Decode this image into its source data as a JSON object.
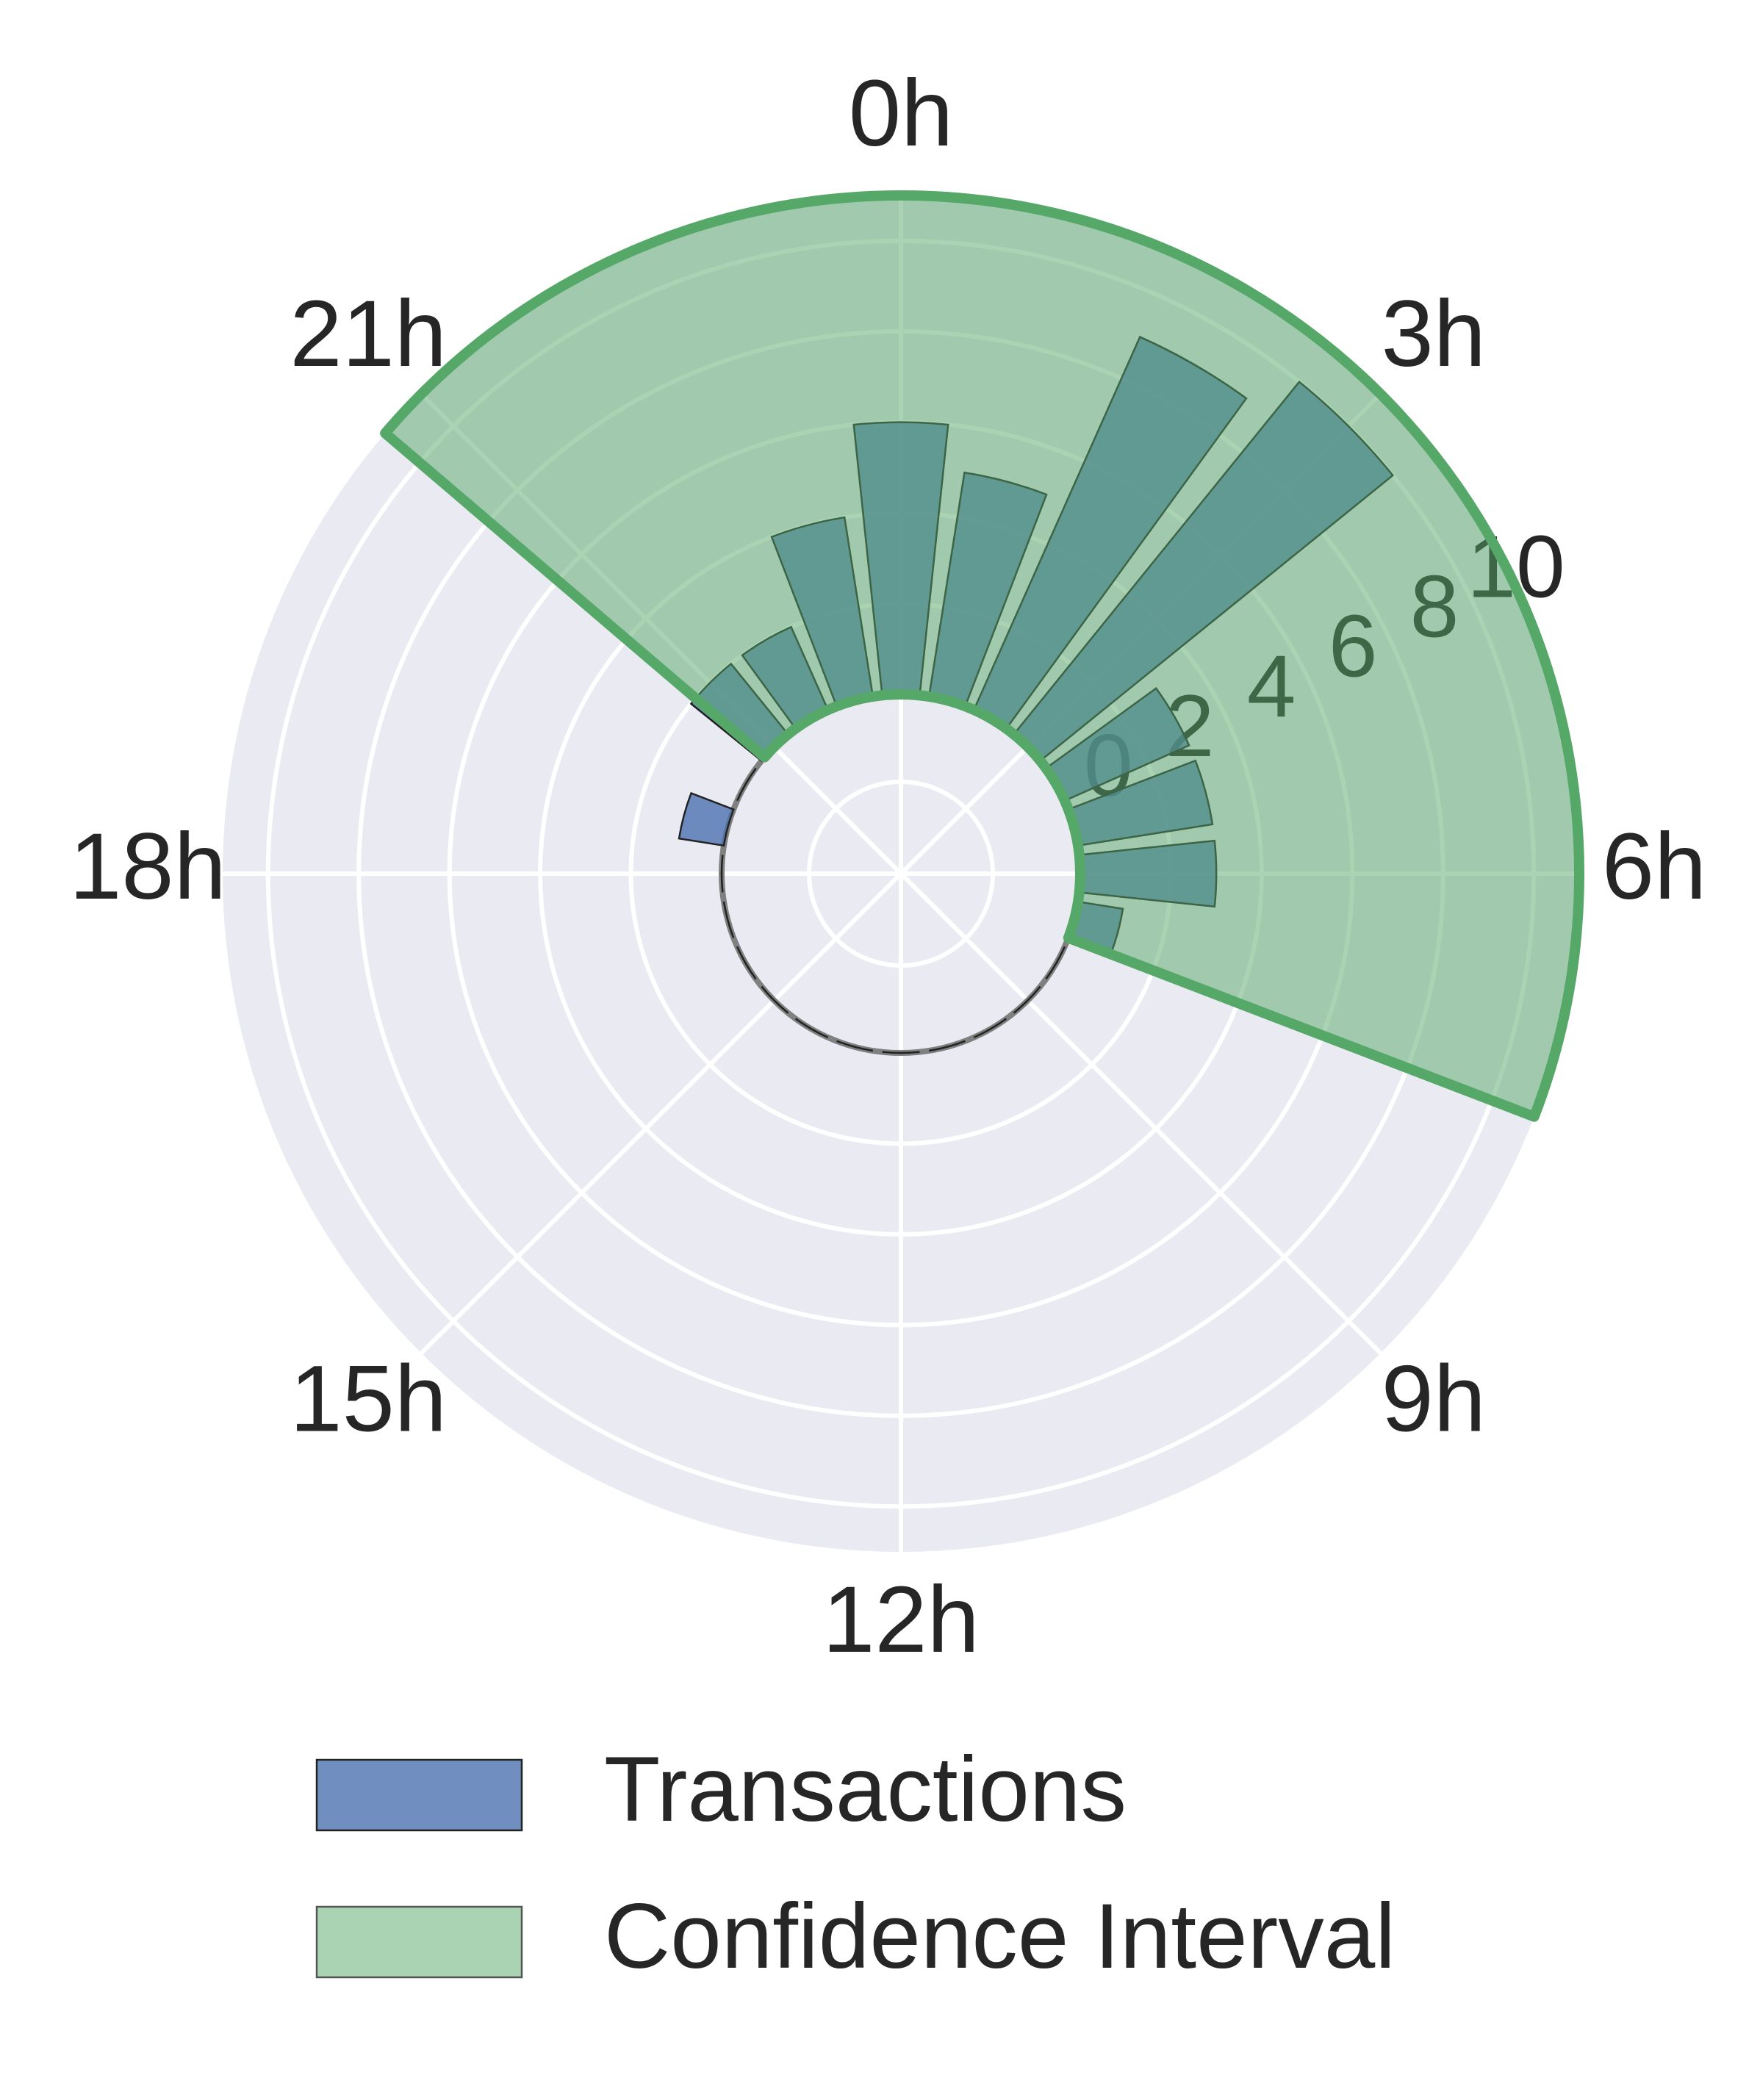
{
  "chart_data": {
    "type": "polar-bar",
    "x": [
      0,
      1,
      2,
      3,
      4,
      5,
      6,
      7,
      8,
      9,
      10,
      11,
      12,
      13,
      14,
      15,
      16,
      17,
      18,
      19,
      20,
      21,
      22,
      23
    ],
    "xlim": [
      0,
      24
    ],
    "xticks": [
      {
        "value": 0,
        "label": "0h"
      },
      {
        "value": 3,
        "label": "3h"
      },
      {
        "value": 6,
        "label": "6h"
      },
      {
        "value": 9,
        "label": "9h"
      },
      {
        "value": 12,
        "label": "12h"
      },
      {
        "value": 15,
        "label": "15h"
      },
      {
        "value": 18,
        "label": "18h"
      },
      {
        "value": 21,
        "label": "21h"
      }
    ],
    "ylim": [
      0,
      11
    ],
    "yticks": [
      0,
      2,
      4,
      6,
      8,
      10
    ],
    "series": [
      {
        "name": "Transactions",
        "color": "#4c72b0",
        "values": [
          6,
          5,
          9,
          10,
          3,
          3,
          3,
          1,
          0,
          0,
          0,
          0,
          0,
          0,
          0,
          0,
          0,
          0,
          0,
          1,
          0,
          2,
          2,
          4
        ]
      }
    ],
    "confidence_interval": {
      "name": "Confidence Interval",
      "color": "#55a868",
      "x": [
        20.7,
        7.4
      ],
      "y": [
        0,
        11
      ]
    },
    "grid": true,
    "legend": "bottom"
  }
}
